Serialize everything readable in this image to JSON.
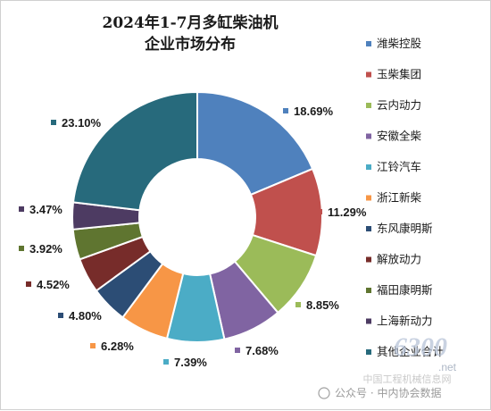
{
  "chart_data": {
    "type": "pie",
    "donut": true,
    "title_lines": [
      "2024年1-7月多缸柴油机",
      "企业市场分布"
    ],
    "categories": [
      "潍柴控股",
      "玉柴集团",
      "云内动力",
      "安徽全柴",
      "江铃汽车",
      "浙江新柴",
      "东风康明斯",
      "解放动力",
      "福田康明斯",
      "上海新动力",
      "其他企业合计"
    ],
    "values": [
      18.69,
      11.29,
      8.85,
      7.68,
      7.39,
      6.28,
      4.8,
      4.52,
      3.92,
      3.47,
      23.1
    ],
    "value_labels": [
      "18.69%",
      "11.29%",
      "8.85%",
      "7.68%",
      "7.39%",
      "6.28%",
      "4.80%",
      "4.52%",
      "3.92%",
      "3.47%",
      "23.10%"
    ],
    "colors": [
      "#4f81bd",
      "#c0504d",
      "#9bbb59",
      "#8064a2",
      "#4bacc6",
      "#f79646",
      "#2c4d75",
      "#772c2a",
      "#5f7530",
      "#4d3b62",
      "#276a7c"
    ],
    "legend_position": "right"
  },
  "watermark": {
    "logo_text": "6300",
    "logo_suffix": ".net",
    "line": "中国工程机械信息网",
    "account": "公众号 · 中内协会数据"
  }
}
